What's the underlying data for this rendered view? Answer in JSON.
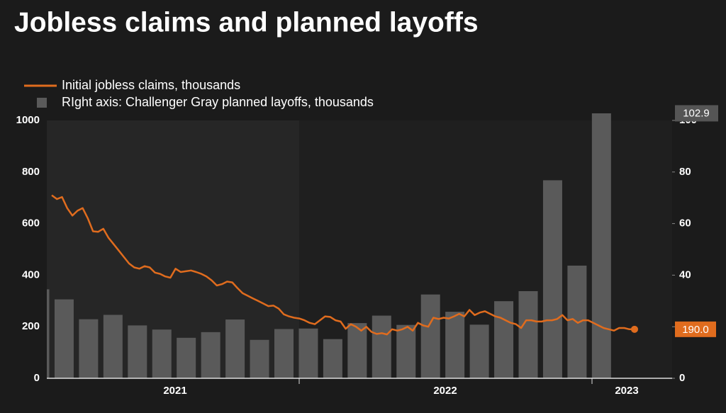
{
  "chart_data": {
    "type": "bar-line",
    "title": "Jobless claims and planned layoffs",
    "xticks": [
      2021,
      2022,
      2023
    ],
    "ylim": [
      0,
      1000
    ],
    "yticks": [
      0,
      200,
      400,
      600,
      800,
      1000
    ],
    "y2lim": [
      0,
      100
    ],
    "y2ticks": [
      0,
      20,
      40,
      60,
      80,
      100
    ],
    "grid": true,
    "series": [
      {
        "name": "Initial jobless claims, thousands",
        "type": "line",
        "color": "#e06c1e",
        "values": [
          710,
          695,
          703,
          660,
          631,
          650,
          660,
          620,
          570,
          568,
          580,
          545,
          520,
          495,
          470,
          445,
          430,
          425,
          435,
          430,
          410,
          405,
          395,
          390,
          425,
          412,
          415,
          418,
          412,
          405,
          395,
          380,
          360,
          365,
          375,
          372,
          350,
          330,
          320,
          310,
          300,
          290,
          280,
          282,
          270,
          248,
          240,
          235,
          232,
          225,
          215,
          210,
          225,
          240,
          238,
          225,
          220,
          192,
          210,
          200,
          185,
          200,
          180,
          172,
          175,
          170,
          190,
          185,
          190,
          200,
          185,
          215,
          205,
          200,
          235,
          230,
          235,
          232,
          240,
          250,
          240,
          265,
          245,
          255,
          260,
          250,
          240,
          235,
          225,
          215,
          210,
          195,
          225,
          225,
          220,
          220,
          225,
          225,
          230,
          245,
          225,
          230,
          215,
          225,
          225,
          215,
          205,
          195,
          190,
          185,
          195,
          195,
          190,
          190
        ],
        "value_labels": [
          null,
          null,
          null,
          null,
          null,
          null,
          null,
          null,
          null,
          null,
          null,
          null,
          null,
          null,
          null,
          null,
          null,
          null,
          null,
          null,
          null,
          null,
          null,
          null,
          null,
          null,
          null,
          null,
          null,
          null,
          null,
          null,
          null,
          null,
          null,
          null,
          null,
          null,
          null,
          null,
          null,
          null,
          null,
          null,
          null,
          null,
          null,
          null,
          null,
          null,
          null,
          null,
          null,
          null,
          null,
          null,
          null,
          null,
          null,
          null,
          null,
          null,
          null,
          null,
          null,
          null,
          null,
          null,
          null,
          null,
          null,
          null,
          null,
          null,
          null,
          null,
          null,
          null,
          null,
          null,
          null,
          null,
          null,
          null,
          null,
          null,
          null,
          null,
          null,
          null,
          null,
          null,
          null,
          null,
          null,
          null,
          null,
          null,
          null,
          null,
          null,
          null,
          null,
          null,
          null,
          null,
          null,
          null,
          null,
          null,
          null,
          null,
          null,
          "190.0"
        ]
      },
      {
        "name": "RIght axis: Challenger Gray planned layoffs, thousands",
        "type": "bar",
        "axis": "y2",
        "color": "#5a5a5a",
        "values": [
          34.5,
          30.6,
          22.9,
          24.6,
          20.5,
          18.9,
          15.7,
          17.9,
          22.8,
          14.9,
          19.1,
          19.3,
          15.2,
          21.4,
          24.3,
          20.7,
          32.5,
          25.8,
          20.8,
          29.9,
          33.8,
          76.8,
          43.7,
          102.9
        ],
        "value_labels": [
          null,
          null,
          null,
          null,
          null,
          null,
          null,
          null,
          null,
          null,
          null,
          null,
          null,
          null,
          null,
          null,
          null,
          null,
          null,
          null,
          null,
          null,
          null,
          "102.9"
        ]
      }
    ]
  }
}
